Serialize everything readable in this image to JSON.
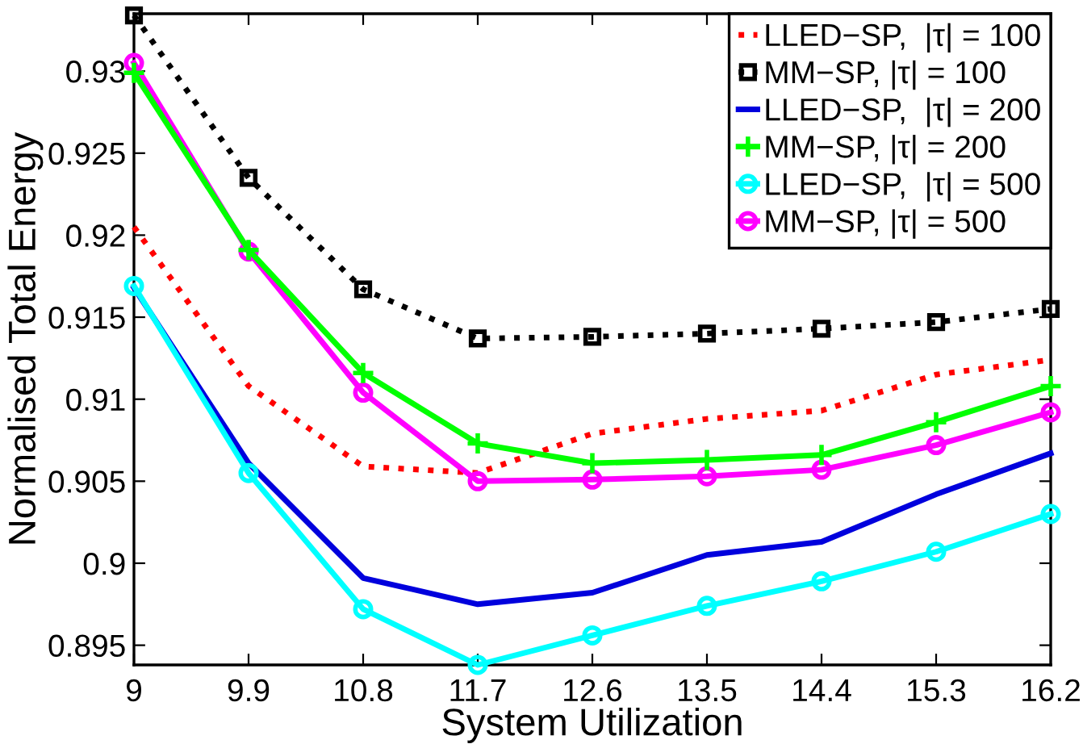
{
  "chart_data": {
    "type": "line",
    "xlabel": "System Utilization",
    "ylabel": "Normalised Total Energy",
    "x": [
      9,
      9.9,
      10.8,
      11.7,
      12.6,
      13.5,
      14.4,
      15.3,
      16.2
    ],
    "xlim": [
      9,
      16.2
    ],
    "xticks": [
      9,
      9.9,
      10.8,
      11.7,
      12.6,
      13.5,
      14.4,
      15.3,
      16.2
    ],
    "ylim": [
      0.8938,
      0.9335
    ],
    "yticks": [
      0.895,
      0.9,
      0.905,
      0.91,
      0.915,
      0.92,
      0.925,
      0.93
    ],
    "grid": false,
    "legend": "top right",
    "series": [
      {
        "name": "LLED−SP,  |τ| = 100",
        "color": "#ff0000",
        "line_style": "dotted",
        "marker": "none",
        "values": [
          0.9205,
          0.9108,
          0.9059,
          0.9055,
          0.9079,
          0.9088,
          0.9093,
          0.9115,
          0.9124
        ]
      },
      {
        "name": "MM−SP, |τ| = 100",
        "color": "#000000",
        "line_style": "dotted",
        "marker": "square",
        "values": [
          0.9334,
          0.9235,
          0.9167,
          0.9137,
          0.9138,
          0.914,
          0.9143,
          0.9147,
          0.9155
        ]
      },
      {
        "name": "LLED−SP,  |τ| = 200",
        "color": "#0000dd",
        "line_style": "solid",
        "marker": "none",
        "values": [
          0.9168,
          0.9061,
          0.8991,
          0.8975,
          0.8982,
          0.9005,
          0.9013,
          0.9042,
          0.9067
        ]
      },
      {
        "name": "MM−SP, |τ| = 200",
        "color": "#00ff00",
        "line_style": "solid",
        "marker": "cross",
        "values": [
          0.9299,
          0.9191,
          0.9116,
          0.9073,
          0.9061,
          0.9063,
          0.9066,
          0.9086,
          0.9108
        ]
      },
      {
        "name": "LLED−SP,  |τ| = 500",
        "color": "#00ffff",
        "line_style": "solid",
        "marker": "circle",
        "values": [
          0.9169,
          0.9055,
          0.8972,
          0.8938,
          0.8956,
          0.8974,
          0.8989,
          0.9007,
          0.903
        ]
      },
      {
        "name": "MM−SP, |τ| = 500",
        "color": "#ff00ff",
        "line_style": "solid",
        "marker": "circle",
        "values": [
          0.9305,
          0.919,
          0.9104,
          0.905,
          0.9051,
          0.9053,
          0.9057,
          0.9072,
          0.9092
        ]
      }
    ]
  }
}
